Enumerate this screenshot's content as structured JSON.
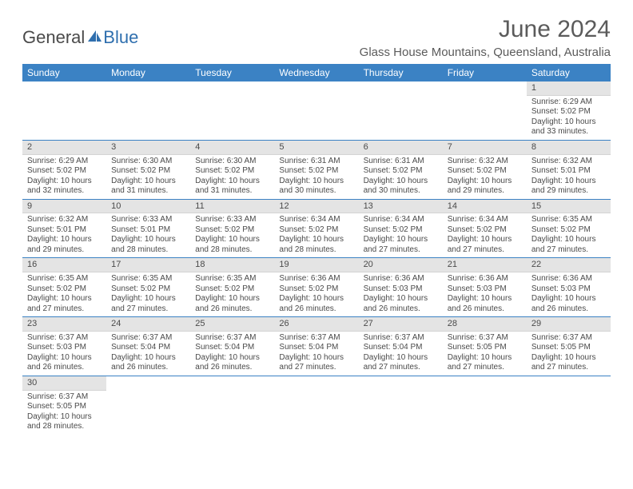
{
  "brand": {
    "part1": "General",
    "part2": "Blue"
  },
  "title": "June 2024",
  "location": "Glass House Mountains, Queensland, Australia",
  "colors": {
    "header_bg": "#3b82c4",
    "header_text": "#ffffff",
    "daynum_bg": "#e4e4e4",
    "row_border": "#3b82c4",
    "text": "#4a4a4a",
    "logo_accent": "#2f6fae"
  },
  "typography": {
    "title_fontsize": 30,
    "location_fontsize": 15,
    "dayheader_fontsize": 12,
    "cell_fontsize": 10
  },
  "day_headers": [
    "Sunday",
    "Monday",
    "Tuesday",
    "Wednesday",
    "Thursday",
    "Friday",
    "Saturday"
  ],
  "weeks": [
    [
      null,
      null,
      null,
      null,
      null,
      null,
      {
        "d": "1",
        "sr": "6:29 AM",
        "ss": "5:02 PM",
        "dl": "10 hours and 33 minutes."
      }
    ],
    [
      {
        "d": "2",
        "sr": "6:29 AM",
        "ss": "5:02 PM",
        "dl": "10 hours and 32 minutes."
      },
      {
        "d": "3",
        "sr": "6:30 AM",
        "ss": "5:02 PM",
        "dl": "10 hours and 31 minutes."
      },
      {
        "d": "4",
        "sr": "6:30 AM",
        "ss": "5:02 PM",
        "dl": "10 hours and 31 minutes."
      },
      {
        "d": "5",
        "sr": "6:31 AM",
        "ss": "5:02 PM",
        "dl": "10 hours and 30 minutes."
      },
      {
        "d": "6",
        "sr": "6:31 AM",
        "ss": "5:02 PM",
        "dl": "10 hours and 30 minutes."
      },
      {
        "d": "7",
        "sr": "6:32 AM",
        "ss": "5:02 PM",
        "dl": "10 hours and 29 minutes."
      },
      {
        "d": "8",
        "sr": "6:32 AM",
        "ss": "5:01 PM",
        "dl": "10 hours and 29 minutes."
      }
    ],
    [
      {
        "d": "9",
        "sr": "6:32 AM",
        "ss": "5:01 PM",
        "dl": "10 hours and 29 minutes."
      },
      {
        "d": "10",
        "sr": "6:33 AM",
        "ss": "5:01 PM",
        "dl": "10 hours and 28 minutes."
      },
      {
        "d": "11",
        "sr": "6:33 AM",
        "ss": "5:02 PM",
        "dl": "10 hours and 28 minutes."
      },
      {
        "d": "12",
        "sr": "6:34 AM",
        "ss": "5:02 PM",
        "dl": "10 hours and 28 minutes."
      },
      {
        "d": "13",
        "sr": "6:34 AM",
        "ss": "5:02 PM",
        "dl": "10 hours and 27 minutes."
      },
      {
        "d": "14",
        "sr": "6:34 AM",
        "ss": "5:02 PM",
        "dl": "10 hours and 27 minutes."
      },
      {
        "d": "15",
        "sr": "6:35 AM",
        "ss": "5:02 PM",
        "dl": "10 hours and 27 minutes."
      }
    ],
    [
      {
        "d": "16",
        "sr": "6:35 AM",
        "ss": "5:02 PM",
        "dl": "10 hours and 27 minutes."
      },
      {
        "d": "17",
        "sr": "6:35 AM",
        "ss": "5:02 PM",
        "dl": "10 hours and 27 minutes."
      },
      {
        "d": "18",
        "sr": "6:35 AM",
        "ss": "5:02 PM",
        "dl": "10 hours and 26 minutes."
      },
      {
        "d": "19",
        "sr": "6:36 AM",
        "ss": "5:02 PM",
        "dl": "10 hours and 26 minutes."
      },
      {
        "d": "20",
        "sr": "6:36 AM",
        "ss": "5:03 PM",
        "dl": "10 hours and 26 minutes."
      },
      {
        "d": "21",
        "sr": "6:36 AM",
        "ss": "5:03 PM",
        "dl": "10 hours and 26 minutes."
      },
      {
        "d": "22",
        "sr": "6:36 AM",
        "ss": "5:03 PM",
        "dl": "10 hours and 26 minutes."
      }
    ],
    [
      {
        "d": "23",
        "sr": "6:37 AM",
        "ss": "5:03 PM",
        "dl": "10 hours and 26 minutes."
      },
      {
        "d": "24",
        "sr": "6:37 AM",
        "ss": "5:04 PM",
        "dl": "10 hours and 26 minutes."
      },
      {
        "d": "25",
        "sr": "6:37 AM",
        "ss": "5:04 PM",
        "dl": "10 hours and 26 minutes."
      },
      {
        "d": "26",
        "sr": "6:37 AM",
        "ss": "5:04 PM",
        "dl": "10 hours and 27 minutes."
      },
      {
        "d": "27",
        "sr": "6:37 AM",
        "ss": "5:04 PM",
        "dl": "10 hours and 27 minutes."
      },
      {
        "d": "28",
        "sr": "6:37 AM",
        "ss": "5:05 PM",
        "dl": "10 hours and 27 minutes."
      },
      {
        "d": "29",
        "sr": "6:37 AM",
        "ss": "5:05 PM",
        "dl": "10 hours and 27 minutes."
      }
    ],
    [
      {
        "d": "30",
        "sr": "6:37 AM",
        "ss": "5:05 PM",
        "dl": "10 hours and 28 minutes."
      },
      null,
      null,
      null,
      null,
      null,
      null
    ]
  ],
  "labels": {
    "sunrise": "Sunrise: ",
    "sunset": "Sunset: ",
    "daylight": "Daylight: "
  }
}
